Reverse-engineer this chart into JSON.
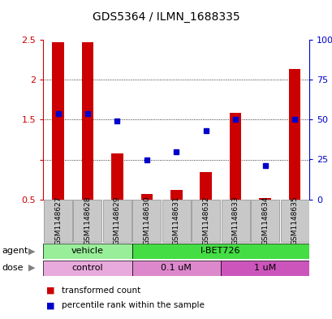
{
  "title": "GDS5364 / ILMN_1688335",
  "samples": [
    "GSM1148627",
    "GSM1148628",
    "GSM1148629",
    "GSM1148630",
    "GSM1148631",
    "GSM1148632",
    "GSM1148633",
    "GSM1148634",
    "GSM1148635"
  ],
  "bar_values": [
    2.47,
    2.47,
    1.08,
    0.57,
    0.62,
    0.84,
    1.59,
    0.52,
    2.13
  ],
  "bar_base": 0.5,
  "blue_values": [
    1.57,
    1.57,
    1.48,
    1.0,
    1.1,
    1.36,
    1.5,
    0.92,
    1.5
  ],
  "ylim_left": [
    0.5,
    2.5
  ],
  "ylim_right": [
    0,
    100
  ],
  "bar_color": "#cc0000",
  "blue_color": "#0000cc",
  "agent_row": [
    {
      "label": "vehicle",
      "start": 0,
      "end": 3,
      "color": "#99ee99"
    },
    {
      "label": "I-BET726",
      "start": 3,
      "end": 9,
      "color": "#44dd44"
    }
  ],
  "dose_row": [
    {
      "label": "control",
      "start": 0,
      "end": 3,
      "color": "#e8aadd"
    },
    {
      "label": "0.1 uM",
      "start": 3,
      "end": 6,
      "color": "#dd88cc"
    },
    {
      "label": "1 uM",
      "start": 6,
      "end": 9,
      "color": "#cc55bb"
    }
  ],
  "legend_items": [
    {
      "color": "#cc0000",
      "label": "transformed count"
    },
    {
      "color": "#0000cc",
      "label": "percentile rank within the sample"
    }
  ],
  "bg_color": "#ffffff",
  "tick_color_left": "#cc0000",
  "tick_color_right": "#0000cc",
  "sample_box_color": "#c8c8c8",
  "sample_box_edge": "#888888"
}
